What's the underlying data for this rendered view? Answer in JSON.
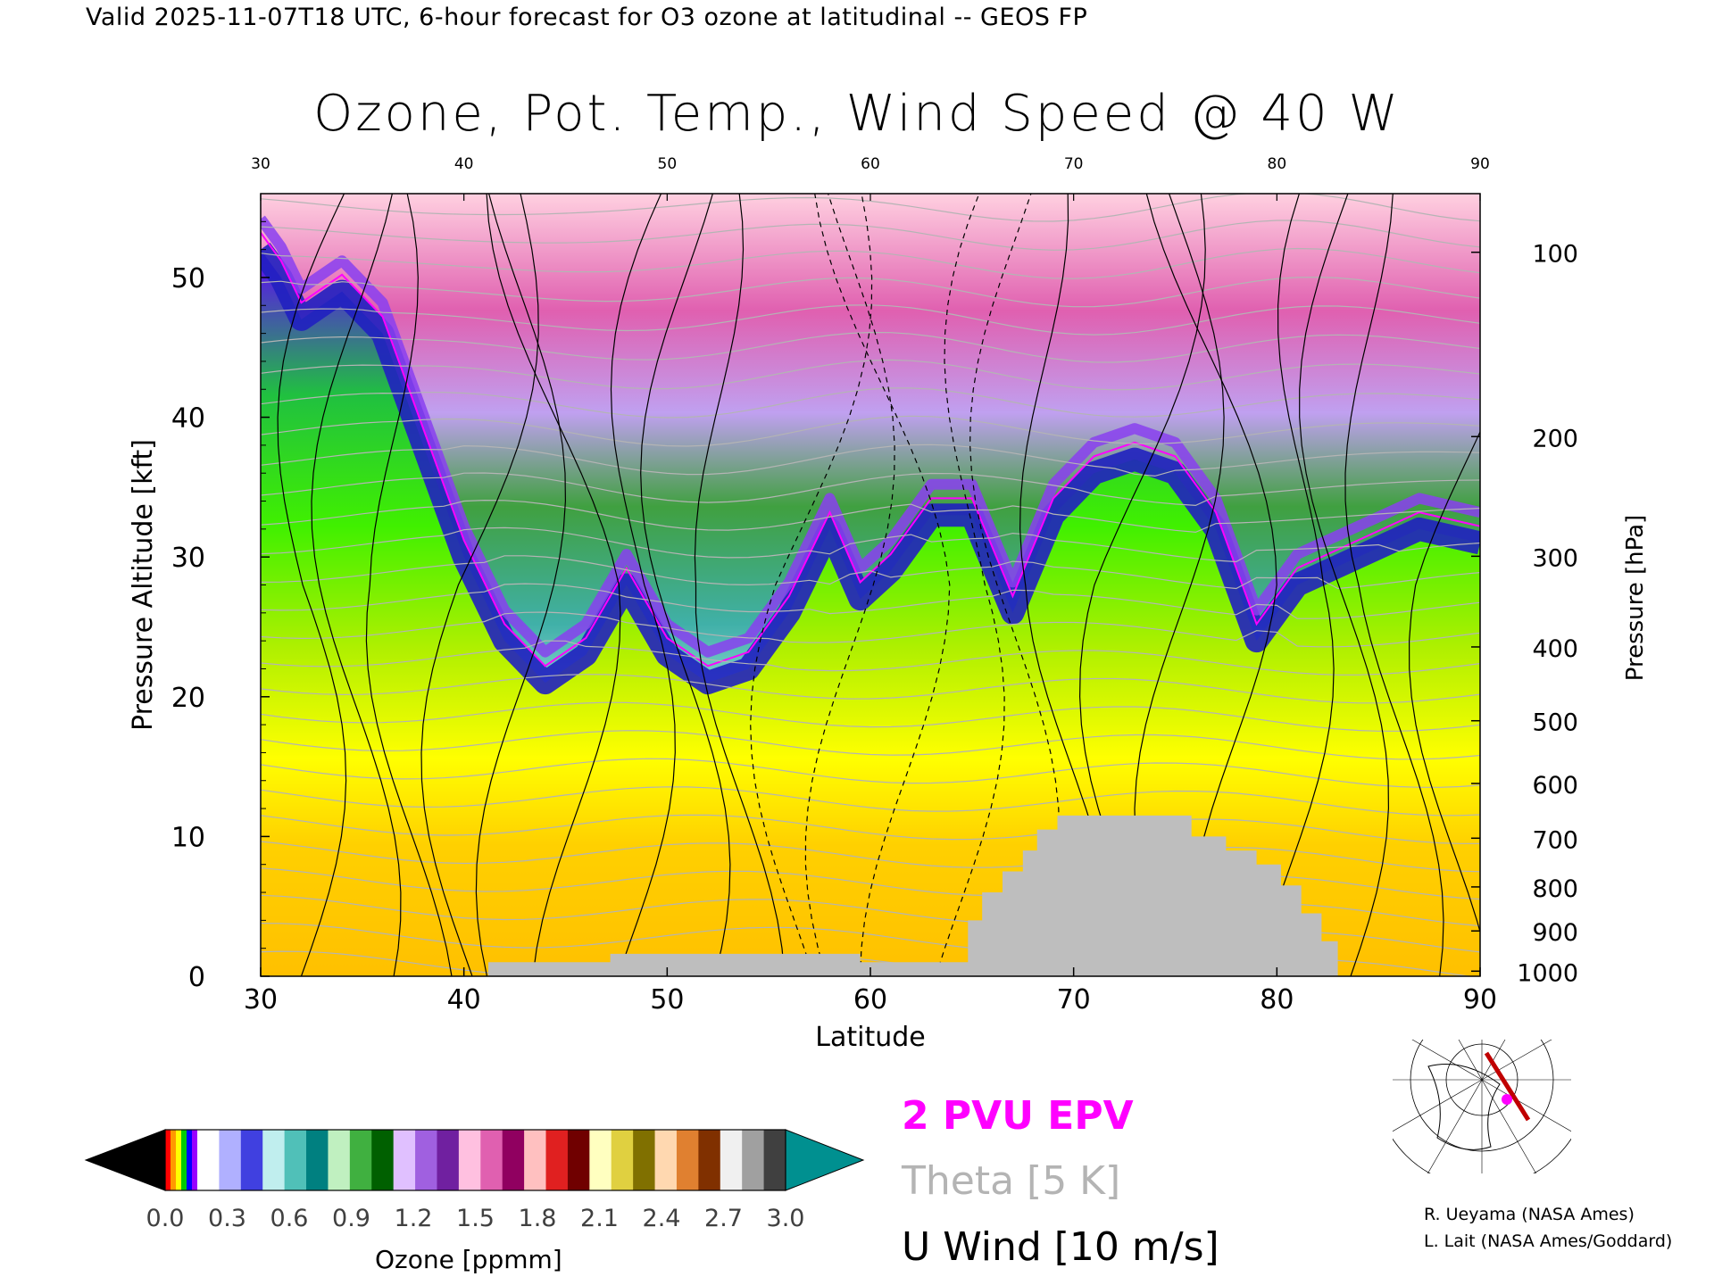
{
  "header": "Valid 2025-11-07T18 UTC, 6-hour forecast for O3 ozone at latitudinal -- GEOS FP",
  "chart_data": {
    "type": "heatmap",
    "title": "Ozone, Pot. Temp., Wind Speed @ 40 W",
    "xlabel": "Latitude",
    "ylabel_left": "Pressure Altitude [kft]",
    "ylabel_right": "Pressure [hPa]",
    "xlim": [
      30,
      90
    ],
    "ylim": [
      0,
      56
    ],
    "x_ticks": [
      "30",
      "40",
      "50",
      "60",
      "70",
      "80",
      "90"
    ],
    "x_ticks_top": [
      "30",
      "40",
      "50",
      "60",
      "70",
      "80",
      "90"
    ],
    "y_ticks_left": [
      {
        "kft": 0,
        "label": "0"
      },
      {
        "kft": 10,
        "label": "10"
      },
      {
        "kft": 20,
        "label": "20"
      },
      {
        "kft": 30,
        "label": "30"
      },
      {
        "kft": 40,
        "label": "40"
      },
      {
        "kft": 50,
        "label": "50"
      }
    ],
    "y_ticks_right": [
      {
        "hpa": 1000,
        "label": "1000"
      },
      {
        "hpa": 900,
        "label": "900"
      },
      {
        "hpa": 800,
        "label": "800"
      },
      {
        "hpa": 700,
        "label": "700"
      },
      {
        "hpa": 600,
        "label": "600"
      },
      {
        "hpa": 500,
        "label": "500"
      },
      {
        "hpa": 400,
        "label": "400"
      },
      {
        "hpa": 300,
        "label": "300"
      },
      {
        "hpa": 200,
        "label": "200"
      },
      {
        "hpa": 100,
        "label": "100"
      }
    ],
    "tropopause_kft": [
      [
        30,
        52
      ],
      [
        31,
        50
      ],
      [
        32,
        47
      ],
      [
        34,
        49
      ],
      [
        36,
        46
      ],
      [
        38,
        38
      ],
      [
        40,
        30
      ],
      [
        42,
        24
      ],
      [
        44,
        21
      ],
      [
        46,
        23
      ],
      [
        48,
        28
      ],
      [
        50,
        23
      ],
      [
        52,
        21
      ],
      [
        54,
        22
      ],
      [
        56,
        26
      ],
      [
        58,
        32
      ],
      [
        59.5,
        27
      ],
      [
        61,
        29
      ],
      [
        63,
        33
      ],
      [
        65,
        33
      ],
      [
        67,
        26
      ],
      [
        69,
        33
      ],
      [
        71,
        36
      ],
      [
        73,
        37
      ],
      [
        75,
        36
      ],
      [
        77,
        32
      ],
      [
        79,
        24
      ],
      [
        81,
        28
      ],
      [
        84,
        30
      ],
      [
        87,
        32
      ],
      [
        90,
        31
      ]
    ],
    "surface_kft": [
      [
        30,
        0
      ],
      [
        41.2,
        0
      ],
      [
        41.2,
        1.0
      ],
      [
        47.2,
        1.0
      ],
      [
        47.2,
        1.6
      ],
      [
        59.5,
        1.6
      ],
      [
        59.5,
        1.0
      ],
      [
        64.8,
        1.0
      ],
      [
        64.8,
        4.0
      ],
      [
        65.5,
        4.0
      ],
      [
        65.5,
        6.0
      ],
      [
        66.5,
        6.0
      ],
      [
        66.5,
        7.5
      ],
      [
        67.5,
        7.5
      ],
      [
        67.5,
        9.0
      ],
      [
        68.2,
        9.0
      ],
      [
        68.2,
        10.5
      ],
      [
        69.2,
        10.5
      ],
      [
        69.2,
        11.5
      ],
      [
        75.8,
        11.5
      ],
      [
        75.8,
        10.0
      ],
      [
        77.5,
        10.0
      ],
      [
        77.5,
        9.0
      ],
      [
        79.0,
        9.0
      ],
      [
        79.0,
        8.0
      ],
      [
        80.2,
        8.0
      ],
      [
        80.2,
        6.5
      ],
      [
        81.2,
        6.5
      ],
      [
        81.2,
        4.5
      ],
      [
        82.2,
        4.5
      ],
      [
        82.2,
        2.5
      ],
      [
        83.0,
        2.5
      ],
      [
        83.0,
        0
      ],
      [
        90,
        0
      ]
    ],
    "colorbar": {
      "label": "Ozone [ppmm]",
      "ticks": [
        "0.0",
        "0.3",
        "0.6",
        "0.9",
        "1.2",
        "1.5",
        "1.8",
        "2.1",
        "2.4",
        "2.7",
        "3.0"
      ],
      "range": [
        0.0,
        3.0
      ],
      "colors": [
        "#ff0000",
        "#ff9900",
        "#ffff00",
        "#00cc00",
        "#0000ff",
        "#9900ff",
        "#ffffff",
        "#b0b0ff",
        "#4040e0",
        "#c0eeee",
        "#50c0b8",
        "#008080",
        "#c0f0c0",
        "#40b040",
        "#006000",
        "#e0c0ff",
        "#a060e0",
        "#7020a0",
        "#ffc0e0",
        "#e060b0",
        "#900060",
        "#ffc0c0",
        "#e02020",
        "#700000",
        "#ffffc0",
        "#e0d040",
        "#807000",
        "#ffd8b0",
        "#e08030",
        "#803000",
        "#f0f0f0",
        "#a0a0a0",
        "#404040"
      ],
      "under_color": "#000000",
      "over_color": "#009090"
    }
  },
  "legend": {
    "epv": "2 PVU EPV",
    "theta": "Theta [5 K]",
    "wind": "U Wind [10 m/s]",
    "epv_color": "#ff00ff",
    "theta_color": "#b4b4b4"
  },
  "credits": {
    "line1": "R. Ueyama (NASA Ames)",
    "line2": "L. Lait (NASA Ames/Goddard)"
  },
  "map_inset": {
    "icon": "polar-map-icon",
    "section_color": "#c00000",
    "marker_color": "#ff00ff"
  }
}
